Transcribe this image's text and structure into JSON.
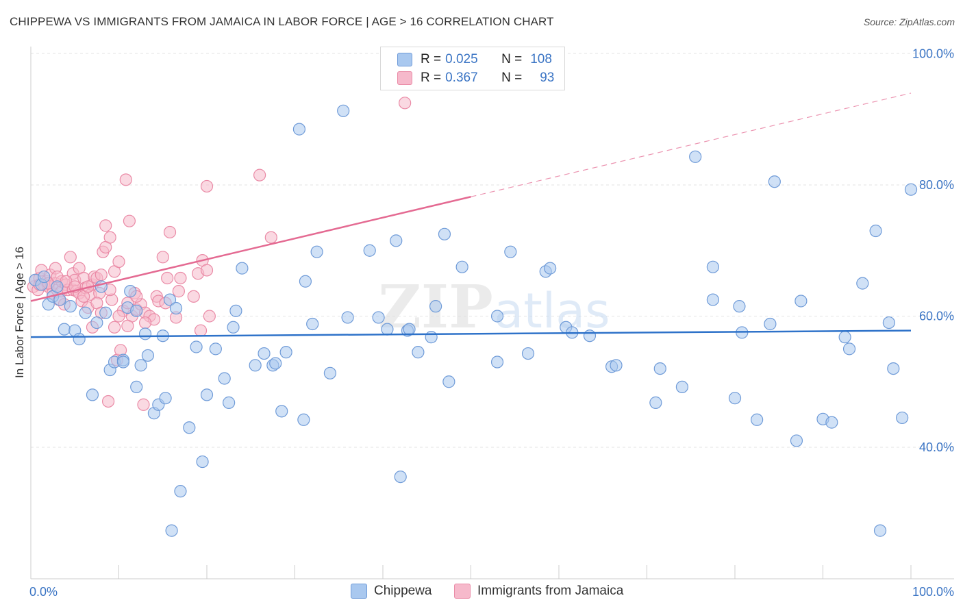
{
  "header": {
    "title": "CHIPPEWA VS IMMIGRANTS FROM JAMAICA IN LABOR FORCE | AGE > 16 CORRELATION CHART",
    "source": "Source: ZipAtlas.com"
  },
  "legend": {
    "rows": [
      {
        "r_label": "R =",
        "r_value": "0.025",
        "n_label": "N =",
        "n_value": "108"
      },
      {
        "r_label": "R =",
        "r_value": "0.367",
        "n_label": "N =",
        "n_value": "93"
      }
    ]
  },
  "watermark": {
    "zip": "ZIP",
    "atlas": "atlas"
  },
  "colors": {
    "blue_fill": "#a9c8ef",
    "blue_stroke": "#6f9bd8",
    "blue_line": "#2e72c9",
    "pink_fill": "#f6b9cb",
    "pink_stroke": "#ea8aa6",
    "pink_line": "#e46a92",
    "axis_label": "#3a74c4"
  },
  "chart_data": {
    "type": "scatter",
    "title": "CHIPPEWA VS IMMIGRANTS FROM JAMAICA IN LABOR FORCE | AGE > 16 CORRELATION CHART",
    "xlabel": "",
    "ylabel": "In Labor Force | Age > 16",
    "xlim": [
      0,
      100
    ],
    "ylim": [
      20,
      102
    ],
    "x_tick_labels": [
      "0.0%",
      "100.0%"
    ],
    "y_ticks": [
      40,
      60,
      80,
      100
    ],
    "y_tick_labels": [
      "40.0%",
      "60.0%",
      "80.0%",
      "100.0%"
    ],
    "grid": true,
    "legend_position": "top-center",
    "series": [
      {
        "name": "Chippewa",
        "color": "#a9c8ef",
        "r": 0.025,
        "n": 108,
        "trend": {
          "x0": 0,
          "y0": 56.8,
          "x1": 100,
          "y1": 57.8
        },
        "points": [
          [
            0.5,
            65.5
          ],
          [
            1.2,
            64.8
          ],
          [
            1.5,
            66.0
          ],
          [
            2.0,
            61.8
          ],
          [
            2.5,
            63.0
          ],
          [
            3.0,
            64.5
          ],
          [
            3.3,
            62.5
          ],
          [
            3.8,
            58.0
          ],
          [
            4.5,
            61.5
          ],
          [
            5.0,
            57.8
          ],
          [
            5.5,
            56.5
          ],
          [
            6.2,
            60.5
          ],
          [
            7.0,
            48.0
          ],
          [
            7.5,
            59.0
          ],
          [
            8.5,
            60.5
          ],
          [
            8.0,
            64.5
          ],
          [
            9.0,
            51.8
          ],
          [
            9.5,
            53.0
          ],
          [
            10.5,
            53.3
          ],
          [
            10.5,
            53.0
          ],
          [
            11.0,
            61.3
          ],
          [
            11.3,
            63.8
          ],
          [
            12.0,
            60.8
          ],
          [
            12.0,
            49.2
          ],
          [
            12.5,
            52.5
          ],
          [
            13.0,
            57.3
          ],
          [
            13.3,
            54.0
          ],
          [
            14.0,
            45.2
          ],
          [
            14.5,
            46.5
          ],
          [
            15.0,
            57.0
          ],
          [
            15.3,
            47.5
          ],
          [
            15.8,
            62.5
          ],
          [
            16.0,
            27.3
          ],
          [
            16.5,
            61.2
          ],
          [
            17.0,
            33.3
          ],
          [
            18.0,
            43.0
          ],
          [
            18.8,
            55.3
          ],
          [
            19.5,
            37.8
          ],
          [
            20.0,
            48.0
          ],
          [
            21.0,
            55.0
          ],
          [
            22.0,
            50.5
          ],
          [
            22.5,
            46.8
          ],
          [
            23.0,
            58.3
          ],
          [
            23.3,
            60.8
          ],
          [
            24.0,
            67.3
          ],
          [
            25.5,
            52.5
          ],
          [
            26.5,
            54.3
          ],
          [
            27.5,
            52.5
          ],
          [
            27.8,
            52.8
          ],
          [
            28.5,
            45.5
          ],
          [
            29.0,
            54.5
          ],
          [
            30.5,
            88.5
          ],
          [
            31.0,
            44.2
          ],
          [
            31.2,
            65.3
          ],
          [
            32.0,
            58.8
          ],
          [
            32.5,
            69.8
          ],
          [
            34.0,
            51.3
          ],
          [
            35.5,
            91.3
          ],
          [
            36.0,
            59.8
          ],
          [
            38.5,
            70.0
          ],
          [
            39.5,
            59.8
          ],
          [
            40.5,
            58.0
          ],
          [
            41.5,
            71.5
          ],
          [
            42.0,
            35.5
          ],
          [
            42.8,
            57.8
          ],
          [
            43.0,
            58.0
          ],
          [
            44.0,
            54.5
          ],
          [
            45.5,
            56.8
          ],
          [
            46.0,
            61.5
          ],
          [
            47.0,
            72.5
          ],
          [
            47.5,
            50.0
          ],
          [
            49.0,
            67.5
          ],
          [
            53.0,
            53.0
          ],
          [
            53.0,
            60.0
          ],
          [
            54.5,
            69.8
          ],
          [
            56.5,
            54.3
          ],
          [
            58.5,
            66.8
          ],
          [
            59.0,
            67.3
          ],
          [
            60.8,
            58.3
          ],
          [
            61.5,
            57.5
          ],
          [
            63.5,
            57.0
          ],
          [
            66.0,
            52.3
          ],
          [
            66.5,
            52.5
          ],
          [
            71.0,
            46.8
          ],
          [
            71.5,
            52.0
          ],
          [
            74.0,
            49.2
          ],
          [
            75.5,
            84.3
          ],
          [
            77.5,
            62.5
          ],
          [
            77.5,
            67.5
          ],
          [
            80.0,
            47.5
          ],
          [
            80.5,
            61.5
          ],
          [
            80.8,
            57.5
          ],
          [
            82.5,
            44.2
          ],
          [
            84.0,
            58.8
          ],
          [
            84.5,
            80.5
          ],
          [
            87.0,
            41.0
          ],
          [
            87.5,
            62.3
          ],
          [
            90.0,
            44.3
          ],
          [
            91.0,
            43.8
          ],
          [
            92.5,
            56.8
          ],
          [
            93.0,
            55.0
          ],
          [
            94.5,
            65.0
          ],
          [
            96.0,
            73.0
          ],
          [
            96.5,
            27.3
          ],
          [
            97.5,
            59.0
          ],
          [
            98.0,
            52.0
          ],
          [
            99.0,
            44.5
          ],
          [
            100.0,
            79.3
          ]
        ]
      },
      {
        "name": "Immigrants from Jamaica",
        "color": "#f6b9cb",
        "r": 0.367,
        "n": 93,
        "trend": {
          "x0": 0,
          "y0": 62.3,
          "x1": 50,
          "y1": 78.2
        },
        "trend_projection": {
          "x0": 50,
          "y0": 78.2,
          "x1": 100,
          "y1": 94.0
        },
        "points": [
          [
            0.3,
            64.5
          ],
          [
            0.5,
            65.5
          ],
          [
            0.8,
            64.0
          ],
          [
            1.0,
            65.8
          ],
          [
            1.2,
            67.0
          ],
          [
            1.5,
            64.8
          ],
          [
            1.8,
            65.3
          ],
          [
            2.0,
            64.5
          ],
          [
            2.2,
            66.3
          ],
          [
            2.5,
            63.5
          ],
          [
            2.8,
            65.0
          ],
          [
            2.8,
            67.3
          ],
          [
            3.0,
            64.0
          ],
          [
            3.2,
            62.5
          ],
          [
            3.5,
            63.8
          ],
          [
            3.5,
            65.3
          ],
          [
            3.8,
            61.8
          ],
          [
            4.0,
            64.8
          ],
          [
            4.2,
            64.0
          ],
          [
            4.5,
            69.0
          ],
          [
            4.8,
            66.5
          ],
          [
            4.8,
            64.0
          ],
          [
            5.0,
            65.5
          ],
          [
            5.2,
            63.8
          ],
          [
            5.5,
            67.3
          ],
          [
            5.5,
            63.5
          ],
          [
            5.8,
            62.3
          ],
          [
            6.0,
            65.8
          ],
          [
            6.2,
            64.3
          ],
          [
            6.5,
            61.3
          ],
          [
            6.8,
            63.3
          ],
          [
            7.0,
            58.3
          ],
          [
            7.0,
            64.8
          ],
          [
            7.2,
            66.0
          ],
          [
            7.5,
            65.8
          ],
          [
            7.8,
            63.5
          ],
          [
            8.0,
            66.3
          ],
          [
            8.2,
            69.8
          ],
          [
            8.5,
            70.5
          ],
          [
            8.5,
            73.8
          ],
          [
            8.8,
            47.0
          ],
          [
            9.0,
            72.0
          ],
          [
            9.2,
            62.5
          ],
          [
            9.5,
            66.8
          ],
          [
            9.5,
            58.3
          ],
          [
            9.8,
            53.3
          ],
          [
            10.0,
            68.3
          ],
          [
            10.2,
            54.8
          ],
          [
            10.5,
            60.8
          ],
          [
            10.8,
            80.8
          ],
          [
            11.0,
            62.0
          ],
          [
            11.2,
            74.5
          ],
          [
            11.5,
            60.0
          ],
          [
            11.8,
            63.5
          ],
          [
            12.0,
            61.0
          ],
          [
            12.5,
            61.8
          ],
          [
            12.8,
            46.5
          ],
          [
            13.0,
            60.5
          ],
          [
            13.5,
            60.0
          ],
          [
            14.0,
            59.5
          ],
          [
            14.3,
            63.0
          ],
          [
            14.5,
            62.3
          ],
          [
            15.0,
            69.0
          ],
          [
            15.3,
            62.0
          ],
          [
            15.5,
            65.8
          ],
          [
            15.8,
            72.8
          ],
          [
            16.5,
            59.8
          ],
          [
            16.8,
            63.8
          ],
          [
            17.0,
            65.8
          ],
          [
            18.5,
            63.0
          ],
          [
            19.0,
            66.5
          ],
          [
            19.3,
            57.8
          ],
          [
            19.5,
            68.5
          ],
          [
            20.0,
            79.8
          ],
          [
            20.0,
            67.0
          ],
          [
            20.3,
            60.0
          ],
          [
            26.0,
            81.5
          ],
          [
            27.3,
            72.0
          ],
          [
            42.5,
            92.5
          ],
          [
            1.0,
            64.8
          ],
          [
            2.0,
            65.0
          ],
          [
            3.0,
            66.0
          ],
          [
            4.0,
            65.3
          ],
          [
            5.0,
            64.5
          ],
          [
            6.0,
            63.0
          ],
          [
            6.5,
            64.5
          ],
          [
            7.5,
            62.0
          ],
          [
            8.0,
            60.5
          ],
          [
            9.0,
            64.0
          ],
          [
            10.0,
            60.0
          ],
          [
            11.0,
            58.5
          ],
          [
            12.0,
            63.0
          ],
          [
            13.0,
            59.0
          ]
        ]
      }
    ]
  }
}
